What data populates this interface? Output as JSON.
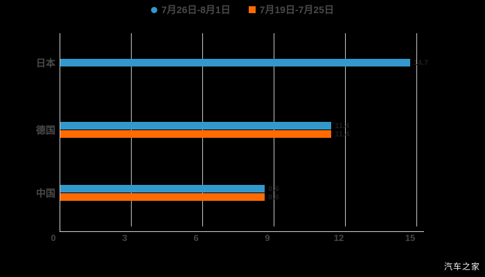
{
  "watermark": "汽车之家",
  "colors": {
    "background": "#000000",
    "series_blue": "#3399cc",
    "series_orange": "#ff6b00",
    "gridline": "#c9c9c9",
    "axis": "#d6d6d6",
    "label_text": "#4a4a4a"
  },
  "chart_data": {
    "type": "bar",
    "orientation": "horizontal",
    "title": "",
    "xlabel": "",
    "ylabel": "",
    "categories": [
      "日本",
      "德国",
      "中国"
    ],
    "series": [
      {
        "name": "7月26日-8月1日",
        "marker": "circle",
        "color": "#3399cc",
        "values": [
          14.7,
          11.4,
          8.6
        ]
      },
      {
        "name": "7月19日-7月25日",
        "marker": "square",
        "color": "#ff6b00",
        "values": [
          null,
          11.4,
          8.6
        ]
      }
    ],
    "x_ticks": [
      0,
      3,
      6,
      9,
      12,
      15
    ],
    "xlim": [
      0,
      15
    ],
    "grid": true,
    "legend_position": "top"
  }
}
